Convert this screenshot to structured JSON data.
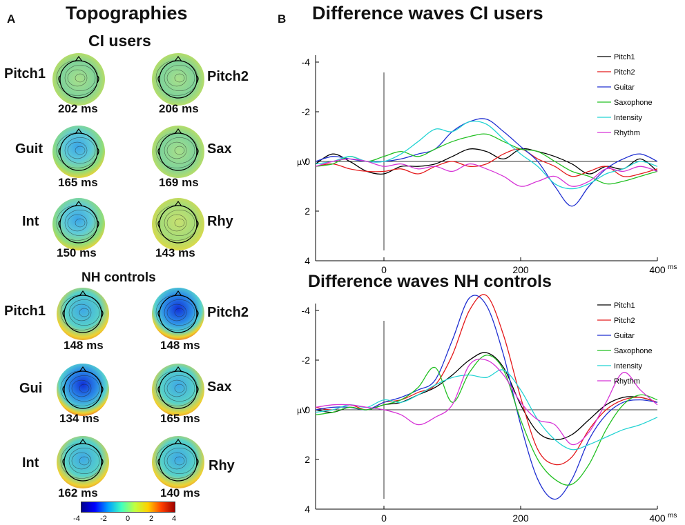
{
  "panel_a": {
    "letter": "A",
    "title": "Topographies",
    "ci_heading": "CI users",
    "nh_heading": "NH controls",
    "ci_maps": [
      {
        "label": "Pitch1",
        "ms": "202 ms"
      },
      {
        "label": "Pitch2",
        "ms": "206 ms"
      },
      {
        "label": "Guit",
        "ms": "165 ms"
      },
      {
        "label": "Sax",
        "ms": "169 ms"
      },
      {
        "label": "Int",
        "ms": "150 ms"
      },
      {
        "label": "Rhy",
        "ms": "143 ms"
      }
    ],
    "nh_maps": [
      {
        "label": "Pitch1",
        "ms": "148 ms"
      },
      {
        "label": "Pitch2",
        "ms": "148 ms"
      },
      {
        "label": "Gui",
        "ms": "134 ms"
      },
      {
        "label": "Sax",
        "ms": "165 ms"
      },
      {
        "label": "Int",
        "ms": "162 ms"
      },
      {
        "label": "Rhy",
        "ms": "140 ms"
      }
    ],
    "colorbar": {
      "ticks": [
        "-4",
        "-2",
        "0",
        "2",
        "4"
      ],
      "range": [
        -4,
        4
      ]
    }
  },
  "panel_b": {
    "letter": "B"
  },
  "chart_data": [
    {
      "type": "line",
      "title": "Difference waves CI users",
      "xlabel": "ms",
      "ylabel": "µV",
      "xlim": [
        -100,
        400
      ],
      "ylim": [
        4,
        -4
      ],
      "xticks": [
        "0",
        "200",
        "400"
      ],
      "yticks": [
        "-4",
        "-2",
        "0",
        "2",
        "4"
      ],
      "legend": "top-right",
      "series": [
        {
          "name": "Pitch1",
          "color": "#000000",
          "x": [
            -100,
            -75,
            -50,
            -25,
            0,
            25,
            50,
            75,
            100,
            125,
            150,
            175,
            200,
            225,
            250,
            275,
            300,
            325,
            350,
            375,
            400
          ],
          "y": [
            0.1,
            -0.3,
            0.0,
            0.4,
            0.5,
            0.2,
            0.2,
            0.1,
            -0.2,
            -0.5,
            -0.4,
            -0.1,
            -0.5,
            -0.4,
            -0.2,
            0.1,
            0.5,
            0.2,
            0.3,
            -0.1,
            0.4
          ]
        },
        {
          "name": "Pitch2",
          "color": "#e41a1c",
          "x": [
            -100,
            -75,
            -50,
            -25,
            0,
            25,
            50,
            75,
            100,
            125,
            150,
            175,
            200,
            225,
            250,
            275,
            300,
            325,
            350,
            375,
            400
          ],
          "y": [
            0.2,
            0.1,
            0.3,
            0.4,
            0.4,
            0.3,
            0.5,
            0.2,
            0.0,
            0.2,
            0.1,
            -0.3,
            -0.5,
            -0.1,
            0.2,
            0.6,
            0.4,
            0.2,
            0.6,
            0.5,
            0.3
          ]
        },
        {
          "name": "Guitar",
          "color": "#1f2fd1",
          "x": [
            -100,
            -75,
            -50,
            -25,
            0,
            25,
            50,
            75,
            100,
            125,
            150,
            175,
            200,
            225,
            250,
            275,
            300,
            325,
            350,
            375,
            400
          ],
          "y": [
            0.0,
            -0.2,
            -0.1,
            0.0,
            0.0,
            -0.1,
            -0.3,
            -0.5,
            -1.2,
            -1.6,
            -1.7,
            -1.2,
            -0.6,
            0.0,
            1.0,
            1.8,
            1.0,
            0.3,
            -0.1,
            -0.3,
            0.0
          ]
        },
        {
          "name": "Saxophone",
          "color": "#22c022",
          "x": [
            -100,
            -75,
            -50,
            -25,
            0,
            25,
            50,
            75,
            100,
            125,
            150,
            175,
            200,
            225,
            250,
            275,
            300,
            325,
            350,
            375,
            400
          ],
          "y": [
            0.2,
            0.1,
            -0.2,
            0.0,
            -0.2,
            -0.4,
            -0.2,
            -0.5,
            -0.8,
            -1.0,
            -1.1,
            -0.8,
            -0.5,
            -0.4,
            0.0,
            0.4,
            0.6,
            0.9,
            0.8,
            0.6,
            0.4
          ]
        },
        {
          "name": "Intensity",
          "color": "#22d3d3",
          "x": [
            -100,
            -75,
            -50,
            -25,
            0,
            25,
            50,
            75,
            100,
            125,
            150,
            175,
            200,
            225,
            250,
            275,
            300,
            325,
            350,
            375,
            400
          ],
          "y": [
            0.1,
            0.0,
            -0.2,
            0.0,
            0.0,
            -0.3,
            -0.8,
            -1.3,
            -1.2,
            -1.6,
            -1.5,
            -0.9,
            -0.3,
            0.2,
            0.9,
            1.1,
            0.9,
            0.5,
            0.3,
            0.0,
            0.2
          ]
        },
        {
          "name": "Rhythm",
          "color": "#d633d6",
          "x": [
            -100,
            -75,
            -50,
            -25,
            0,
            25,
            50,
            75,
            100,
            125,
            150,
            175,
            200,
            225,
            250,
            275,
            300,
            325,
            350,
            375,
            400
          ],
          "y": [
            0.2,
            0.0,
            -0.1,
            0.0,
            0.2,
            0.1,
            0.3,
            0.2,
            0.4,
            0.1,
            0.3,
            0.6,
            1.0,
            0.8,
            0.6,
            1.0,
            0.8,
            0.3,
            0.4,
            0.2,
            0.4
          ]
        }
      ]
    },
    {
      "type": "line",
      "title": "Difference waves NH controls",
      "xlabel": "ms",
      "ylabel": "µV",
      "xlim": [
        -100,
        400
      ],
      "ylim": [
        4,
        -4
      ],
      "xticks": [
        "0",
        "200",
        "400"
      ],
      "yticks": [
        "-4",
        "-2",
        "0",
        "2",
        "4"
      ],
      "legend": "top-right",
      "series": [
        {
          "name": "Pitch1",
          "color": "#000000",
          "x": [
            -100,
            -75,
            -50,
            -25,
            0,
            25,
            50,
            75,
            100,
            125,
            150,
            175,
            200,
            225,
            250,
            275,
            300,
            325,
            350,
            375,
            400
          ],
          "y": [
            0.0,
            0.1,
            -0.1,
            0.0,
            -0.2,
            -0.3,
            -0.6,
            -0.9,
            -1.4,
            -2.0,
            -2.3,
            -1.7,
            -0.2,
            0.9,
            1.2,
            1.0,
            0.4,
            -0.2,
            -0.5,
            -0.5,
            -0.3
          ]
        },
        {
          "name": "Pitch2",
          "color": "#e41a1c",
          "x": [
            -100,
            -75,
            -50,
            -25,
            0,
            25,
            50,
            75,
            100,
            125,
            150,
            175,
            200,
            225,
            250,
            275,
            300,
            325,
            350,
            375,
            400
          ],
          "y": [
            -0.1,
            0.0,
            -0.2,
            0.0,
            -0.3,
            -0.4,
            -0.7,
            -1.0,
            -2.2,
            -4.0,
            -4.6,
            -3.0,
            -0.5,
            1.6,
            2.2,
            1.9,
            0.8,
            0.0,
            -0.4,
            -0.5,
            -0.3
          ]
        },
        {
          "name": "Guitar",
          "color": "#1f2fd1",
          "x": [
            -100,
            -75,
            -50,
            -25,
            0,
            25,
            50,
            75,
            100,
            125,
            150,
            175,
            200,
            225,
            250,
            275,
            300,
            325,
            350,
            375,
            400
          ],
          "y": [
            0.0,
            -0.1,
            -0.1,
            0.0,
            -0.3,
            -0.5,
            -0.8,
            -1.2,
            -2.8,
            -4.5,
            -4.2,
            -2.2,
            0.6,
            2.8,
            3.6,
            2.8,
            1.2,
            0.2,
            -0.3,
            -0.4,
            -0.3
          ]
        },
        {
          "name": "Saxophone",
          "color": "#22c022",
          "x": [
            -100,
            -75,
            -50,
            -25,
            0,
            25,
            50,
            75,
            100,
            125,
            150,
            175,
            200,
            225,
            250,
            275,
            300,
            325,
            350,
            375,
            400
          ],
          "y": [
            0.2,
            0.1,
            -0.1,
            0.0,
            -0.2,
            -0.4,
            -0.9,
            -1.7,
            -0.3,
            -1.5,
            -2.2,
            -1.6,
            0.4,
            2.0,
            2.8,
            3.0,
            2.2,
            0.8,
            -0.2,
            -0.6,
            -0.4
          ]
        },
        {
          "name": "Intensity",
          "color": "#22d3d3",
          "x": [
            -100,
            -75,
            -50,
            -25,
            0,
            25,
            50,
            75,
            100,
            125,
            150,
            175,
            200,
            225,
            250,
            275,
            300,
            325,
            350,
            375,
            400
          ],
          "y": [
            0.1,
            0.0,
            -0.2,
            -0.1,
            -0.4,
            -0.3,
            -0.6,
            -1.0,
            -1.3,
            -1.4,
            -1.3,
            -1.6,
            -0.8,
            0.4,
            1.2,
            1.6,
            1.4,
            1.1,
            0.8,
            0.6,
            0.3
          ]
        },
        {
          "name": "Rhythm",
          "color": "#d633d6",
          "x": [
            -100,
            -75,
            -50,
            -25,
            0,
            25,
            50,
            75,
            100,
            125,
            150,
            175,
            200,
            225,
            250,
            275,
            300,
            325,
            350,
            375,
            400
          ],
          "y": [
            -0.1,
            -0.2,
            -0.2,
            -0.1,
            0.0,
            0.2,
            0.6,
            0.3,
            -0.2,
            -1.8,
            -2.0,
            -1.4,
            -0.3,
            0.4,
            0.6,
            1.4,
            0.9,
            -0.3,
            -1.5,
            -0.8,
            -0.2
          ]
        }
      ]
    }
  ]
}
